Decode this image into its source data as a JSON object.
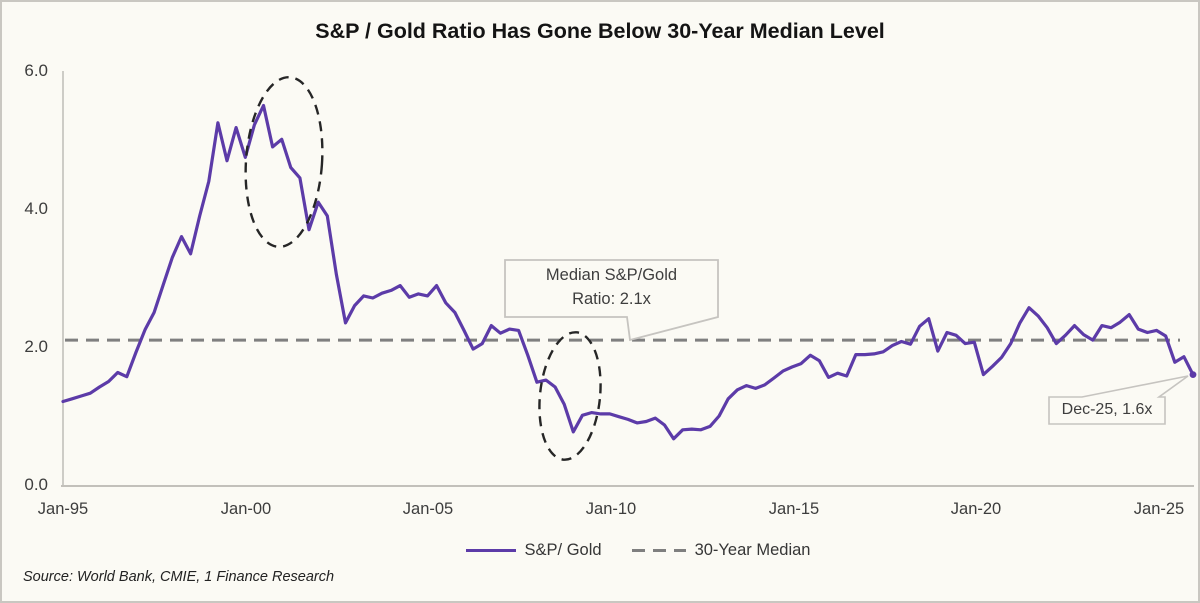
{
  "title": "S&P / Gold Ratio Has Gone Below 30-Year Median Level",
  "source": "Source: World Bank, CMIE, 1 Finance Research",
  "legend": {
    "series1": "S&P/ Gold",
    "series2": "30-Year Median"
  },
  "annotations": {
    "median_callout_line1": "Median S&P/Gold",
    "median_callout_line2": "Ratio: 2.1x",
    "latest_callout": "Dec-25, 1.6x"
  },
  "colors": {
    "line": "#5C3BA8",
    "median": "#7f7f7f",
    "ellipse": "#262626",
    "axis": "#c2c0ba",
    "callout_border": "#c6c4c0",
    "background": "#FBFAF4"
  },
  "chart_data": {
    "type": "line",
    "title": "S&P / Gold Ratio Has Gone Below 30-Year Median Level",
    "xlabel": "",
    "ylabel": "",
    "ylim": [
      0.0,
      6.0
    ],
    "y_ticks": [
      0.0,
      2.0,
      4.0,
      6.0
    ],
    "y_tick_labels": [
      "6.0",
      "4.0",
      "2.0",
      "0.0"
    ],
    "x_tick_labels": [
      "Jan-95",
      "Jan-00",
      "Jan-05",
      "Jan-10",
      "Jan-15",
      "Jan-20",
      "Jan-25"
    ],
    "x_range": "Jan-1995 to Dec-2025",
    "frequency": "quarterly (last point Dec-2025)",
    "median_value": 2.1,
    "latest_point": {
      "label": "Dec-25",
      "value": 1.6
    },
    "peak_value": 5.5,
    "trough_value": 0.67,
    "series": [
      {
        "name": "S&P/ Gold",
        "values": [
          1.21,
          1.25,
          1.29,
          1.33,
          1.42,
          1.5,
          1.63,
          1.57,
          1.92,
          2.25,
          2.5,
          2.9,
          3.3,
          3.6,
          3.35,
          3.9,
          4.4,
          5.25,
          4.7,
          5.18,
          4.75,
          5.22,
          5.5,
          4.9,
          5.01,
          4.6,
          4.45,
          3.7,
          4.1,
          3.9,
          3.05,
          2.35,
          2.6,
          2.74,
          2.71,
          2.78,
          2.82,
          2.89,
          2.72,
          2.77,
          2.74,
          2.89,
          2.64,
          2.5,
          2.24,
          1.97,
          2.05,
          2.31,
          2.2,
          2.26,
          2.24,
          1.88,
          1.49,
          1.52,
          1.42,
          1.17,
          0.77,
          1.01,
          1.05,
          1.03,
          1.03,
          0.99,
          0.95,
          0.9,
          0.92,
          0.97,
          0.87,
          0.67,
          0.8,
          0.81,
          0.8,
          0.85,
          1.0,
          1.25,
          1.38,
          1.44,
          1.4,
          1.45,
          1.55,
          1.65,
          1.71,
          1.76,
          1.88,
          1.8,
          1.56,
          1.62,
          1.58,
          1.89,
          1.89,
          1.9,
          1.93,
          2.02,
          2.08,
          2.04,
          2.3,
          2.41,
          1.94,
          2.21,
          2.17,
          2.05,
          2.07,
          1.6,
          1.72,
          1.85,
          2.05,
          2.35,
          2.57,
          2.45,
          2.28,
          2.05,
          2.17,
          2.31,
          2.18,
          2.1,
          2.31,
          2.28,
          2.36,
          2.47,
          2.26,
          2.21,
          2.24,
          2.16,
          1.78,
          1.86,
          1.6
        ]
      },
      {
        "name": "30-Year Median",
        "type": "constant",
        "value": 2.1
      }
    ]
  }
}
